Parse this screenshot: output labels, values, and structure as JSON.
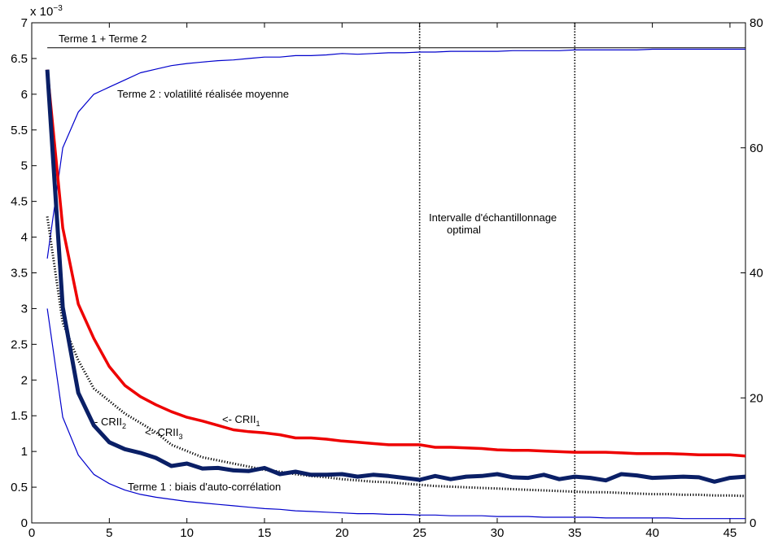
{
  "chart_data": {
    "type": "line",
    "title": "",
    "xlabel": "",
    "ylabel": "",
    "xlim": [
      0,
      46
    ],
    "ylim": [
      0,
      0.007
    ],
    "y2lim": [
      0,
      80
    ],
    "grid": false,
    "legend": "none",
    "x_ticks": [
      0,
      5,
      10,
      15,
      20,
      25,
      30,
      35,
      40,
      45
    ],
    "y_ticks": [
      0,
      0.0005,
      0.001,
      0.0015,
      0.002,
      0.0025,
      0.003,
      0.0035,
      0.004,
      0.0045,
      0.005,
      0.0055,
      0.006,
      0.0065,
      0.007
    ],
    "y_tick_labels": [
      "0",
      "0.5",
      "1",
      "1.5",
      "2",
      "2.5",
      "3",
      "3.5",
      "4",
      "4.5",
      "5",
      "5.5",
      "6",
      "6.5",
      "7"
    ],
    "y_exponent_base": "x 10",
    "y_exponent_power": "−3",
    "y2_ticks": [
      0,
      20,
      40,
      60,
      80
    ],
    "vlines": [
      25,
      35
    ],
    "colors": {
      "terme": "#0000cc",
      "crii1": "#ee0000",
      "crii2": "#0a1f66",
      "crii3": "#000000"
    },
    "series": [
      {
        "id": "terme1plus2",
        "axis": "left",
        "x": [
          1,
          46
        ],
        "values": [
          0.00665,
          0.00665
        ]
      },
      {
        "id": "terme2",
        "axis": "left",
        "x": [
          1,
          2,
          3,
          4,
          5,
          6,
          7,
          8,
          9,
          10,
          11,
          12,
          13,
          14,
          15,
          16,
          17,
          18,
          19,
          20,
          21,
          22,
          23,
          24,
          25,
          26,
          27,
          28,
          29,
          30,
          31,
          32,
          33,
          34,
          35,
          36,
          37,
          38,
          39,
          40,
          41,
          42,
          43,
          44,
          45,
          46
        ],
        "values": [
          0.0037,
          0.00525,
          0.00575,
          0.006,
          0.0061,
          0.0062,
          0.0063,
          0.00635,
          0.0064,
          0.00643,
          0.00645,
          0.00647,
          0.00648,
          0.0065,
          0.00652,
          0.00652,
          0.00654,
          0.00654,
          0.00655,
          0.00657,
          0.00656,
          0.00657,
          0.00658,
          0.00658,
          0.00659,
          0.00659,
          0.0066,
          0.0066,
          0.0066,
          0.0066,
          0.00661,
          0.00661,
          0.00661,
          0.00661,
          0.00662,
          0.00662,
          0.00662,
          0.00662,
          0.00662,
          0.00663,
          0.00663,
          0.00663,
          0.00663,
          0.00663,
          0.00663,
          0.00663
        ]
      },
      {
        "id": "terme1",
        "axis": "left",
        "x": [
          1,
          2,
          3,
          4,
          5,
          6,
          7,
          8,
          9,
          10,
          11,
          12,
          13,
          14,
          15,
          16,
          17,
          18,
          19,
          20,
          21,
          22,
          23,
          24,
          25,
          26,
          27,
          28,
          29,
          30,
          31,
          32,
          33,
          34,
          35,
          36,
          37,
          38,
          39,
          40,
          41,
          42,
          43,
          44,
          45,
          46
        ],
        "values": [
          0.003,
          0.00148,
          0.00095,
          0.00068,
          0.00055,
          0.00046,
          0.0004,
          0.00036,
          0.00033,
          0.0003,
          0.00028,
          0.00026,
          0.00024,
          0.00022,
          0.0002,
          0.00019,
          0.00017,
          0.00016,
          0.00015,
          0.00014,
          0.00013,
          0.00013,
          0.00012,
          0.00012,
          0.00011,
          0.00011,
          0.0001,
          0.0001,
          0.0001,
          9e-05,
          9e-05,
          9e-05,
          8e-05,
          8e-05,
          8e-05,
          8e-05,
          7e-05,
          7e-05,
          7e-05,
          7e-05,
          7e-05,
          6e-05,
          6e-05,
          6e-05,
          6e-05,
          6e-05
        ]
      },
      {
        "id": "crii1",
        "axis": "right",
        "x": [
          1,
          2,
          3,
          4,
          5,
          6,
          7,
          8,
          9,
          10,
          11,
          12,
          13,
          14,
          15,
          16,
          17,
          18,
          19,
          20,
          21,
          22,
          23,
          24,
          25,
          26,
          27,
          28,
          29,
          30,
          31,
          32,
          33,
          34,
          35,
          36,
          37,
          38,
          39,
          40,
          41,
          42,
          43,
          44,
          45,
          46
        ],
        "values": [
          72.5,
          47.2,
          35.0,
          29.5,
          25.0,
          22.0,
          20.2,
          18.9,
          17.8,
          16.9,
          16.3,
          15.6,
          14.9,
          14.6,
          14.4,
          14.1,
          13.6,
          13.6,
          13.4,
          13.1,
          12.9,
          12.7,
          12.5,
          12.5,
          12.5,
          12.1,
          12.1,
          12.0,
          11.9,
          11.7,
          11.6,
          11.6,
          11.5,
          11.4,
          11.3,
          11.3,
          11.3,
          11.2,
          11.1,
          11.1,
          11.1,
          11.0,
          10.9,
          10.9,
          10.9,
          10.7
        ]
      },
      {
        "id": "crii2",
        "axis": "right",
        "x": [
          1,
          2,
          3,
          4,
          5,
          6,
          7,
          8,
          9,
          10,
          11,
          12,
          13,
          14,
          15,
          16,
          17,
          18,
          19,
          20,
          21,
          22,
          23,
          24,
          25,
          26,
          27,
          28,
          29,
          30,
          31,
          32,
          33,
          34,
          35,
          36,
          37,
          38,
          39,
          40,
          41,
          42,
          43,
          44,
          45,
          46
        ],
        "values": [
          72.5,
          34.5,
          20.8,
          15.6,
          12.9,
          11.8,
          11.2,
          10.4,
          9.1,
          9.5,
          8.7,
          8.8,
          8.4,
          8.3,
          8.8,
          7.8,
          8.2,
          7.7,
          7.7,
          7.8,
          7.4,
          7.7,
          7.5,
          7.2,
          6.9,
          7.5,
          7.0,
          7.4,
          7.5,
          7.8,
          7.3,
          7.2,
          7.7,
          7.0,
          7.4,
          7.2,
          6.8,
          7.8,
          7.6,
          7.2,
          7.3,
          7.4,
          7.3,
          6.6,
          7.2,
          7.4
        ]
      },
      {
        "id": "crii3",
        "axis": "right",
        "x": [
          1,
          2,
          3,
          4,
          5,
          6,
          7,
          8,
          9,
          10,
          11,
          12,
          13,
          14,
          15,
          16,
          17,
          18,
          19,
          20,
          21,
          22,
          23,
          24,
          25,
          26,
          27,
          28,
          29,
          30,
          31,
          32,
          33,
          34,
          35,
          36,
          37,
          38,
          39,
          40,
          41,
          42,
          43,
          44,
          45,
          46
        ],
        "values": [
          49.0,
          32.0,
          26.0,
          21.5,
          19.5,
          17.5,
          16.0,
          14.5,
          12.5,
          11.5,
          10.5,
          10.0,
          9.5,
          9.0,
          8.5,
          8.2,
          7.8,
          7.5,
          7.3,
          7.0,
          6.8,
          6.6,
          6.5,
          6.3,
          6.1,
          5.9,
          5.8,
          5.7,
          5.6,
          5.5,
          5.4,
          5.3,
          5.2,
          5.1,
          5.0,
          4.9,
          4.9,
          4.8,
          4.7,
          4.6,
          4.6,
          4.5,
          4.5,
          4.4,
          4.4,
          4.3
        ]
      }
    ],
    "annotations": {
      "terme12": "Terme 1 + Terme 2",
      "terme2": "Terme 2 : volatilité réalisée moyenne",
      "terme1": "Terme 1 : biais d'auto-corrélation",
      "intervalle_line1": "Intervalle d'échantillonnage",
      "intervalle_line2": "optimal",
      "crii1_prefix": "<- CRII",
      "crii1_sub": "1",
      "crii2_prefix": "- CRII",
      "crii2_sub": "2",
      "crii3_prefix": "<- CRII",
      "crii3_sub": "3"
    }
  }
}
